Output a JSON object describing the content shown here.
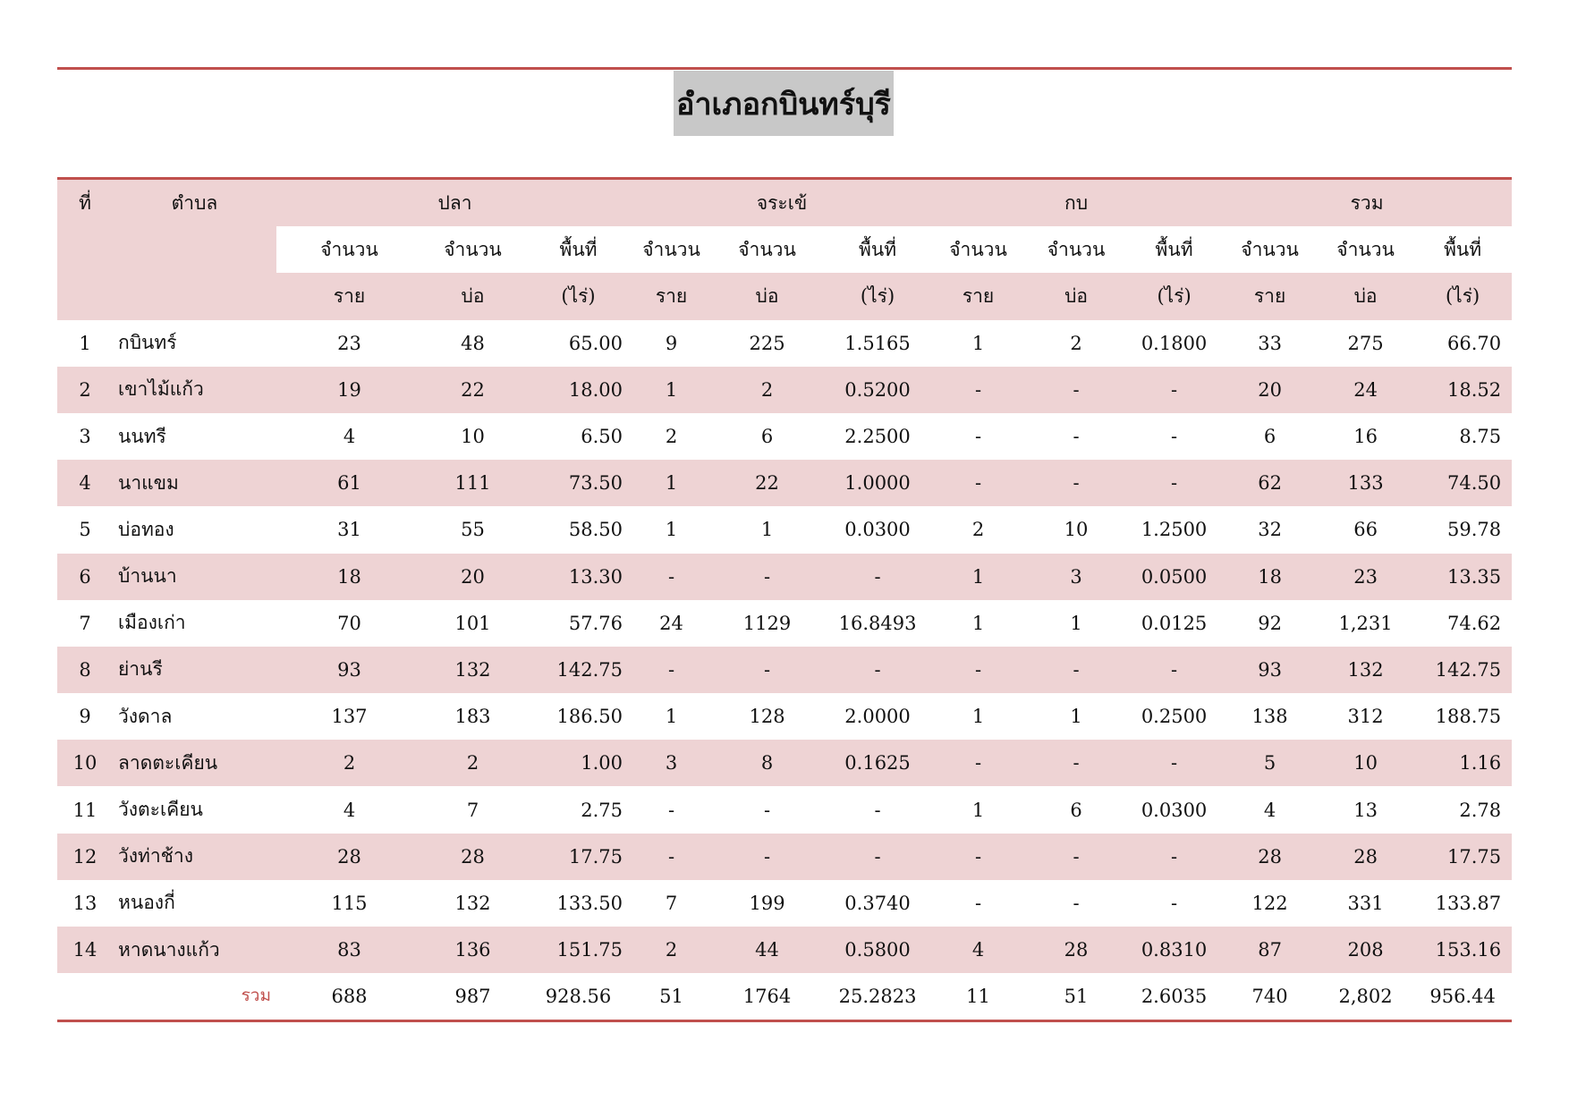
{
  "title": "อำเภอกบินทร์บุรี",
  "colors": {
    "rule": "#c0504d",
    "band": "#eed3d4",
    "title_bg": "#c8c8c8"
  },
  "header": {
    "no": "ที่",
    "tambon": "ตำบล",
    "groups": [
      "ปลา",
      "จระเข้",
      "กบ",
      "รวม"
    ],
    "sub1": [
      "จำนวน",
      "จำนวน",
      "พื้นที่"
    ],
    "sub2": [
      "ราย",
      "บ่อ",
      "(ไร่)"
    ]
  },
  "rows": [
    [
      "1",
      "กบินทร์",
      "23",
      "48",
      "65.00",
      "9",
      "225",
      "1.5165",
      "1",
      "2",
      "0.1800",
      "33",
      "275",
      "66.70"
    ],
    [
      "2",
      "เขาไม้แก้ว",
      "19",
      "22",
      "18.00",
      "1",
      "2",
      "0.5200",
      "-",
      "-",
      "-",
      "20",
      "24",
      "18.52"
    ],
    [
      "3",
      "นนทรี",
      "4",
      "10",
      "6.50",
      "2",
      "6",
      "2.2500",
      "-",
      "-",
      "-",
      "6",
      "16",
      "8.75"
    ],
    [
      "4",
      "นาแขม",
      "61",
      "111",
      "73.50",
      "1",
      "22",
      "1.0000",
      "-",
      "-",
      "-",
      "62",
      "133",
      "74.50"
    ],
    [
      "5",
      "บ่อทอง",
      "31",
      "55",
      "58.50",
      "1",
      "1",
      "0.0300",
      "2",
      "10",
      "1.2500",
      "32",
      "66",
      "59.78"
    ],
    [
      "6",
      "บ้านนา",
      "18",
      "20",
      "13.30",
      "-",
      "-",
      "-",
      "1",
      "3",
      "0.0500",
      "18",
      "23",
      "13.35"
    ],
    [
      "7",
      "เมืองเก่า",
      "70",
      "101",
      "57.76",
      "24",
      "1129",
      "16.8493",
      "1",
      "1",
      "0.0125",
      "92",
      "1,231",
      "74.62"
    ],
    [
      "8",
      "ย่านรี",
      "93",
      "132",
      "142.75",
      "-",
      "-",
      "-",
      "-",
      "-",
      "-",
      "93",
      "132",
      "142.75"
    ],
    [
      "9",
      "วังดาล",
      "137",
      "183",
      "186.50",
      "1",
      "128",
      "2.0000",
      "1",
      "1",
      "0.2500",
      "138",
      "312",
      "188.75"
    ],
    [
      "10",
      "ลาดตะเคียน",
      "2",
      "2",
      "1.00",
      "3",
      "8",
      "0.1625",
      "-",
      "-",
      "-",
      "5",
      "10",
      "1.16"
    ],
    [
      "11",
      "วังตะเคียน",
      "4",
      "7",
      "2.75",
      "-",
      "-",
      "-",
      "1",
      "6",
      "0.0300",
      "4",
      "13",
      "2.78"
    ],
    [
      "12",
      "วังท่าช้าง",
      "28",
      "28",
      "17.75",
      "-",
      "-",
      "-",
      "-",
      "-",
      "-",
      "28",
      "28",
      "17.75"
    ],
    [
      "13",
      "หนองกี่",
      "115",
      "132",
      "133.50",
      "7",
      "199",
      "0.3740",
      "-",
      "-",
      "-",
      "122",
      "331",
      "133.87"
    ],
    [
      "14",
      "หาดนางแก้ว",
      "83",
      "136",
      "151.75",
      "2",
      "44",
      "0.5800",
      "4",
      "28",
      "0.8310",
      "87",
      "208",
      "153.16"
    ]
  ],
  "total": {
    "label": "รวม",
    "values": [
      "688",
      "987",
      "928.56",
      "51",
      "1764",
      "25.2823",
      "11",
      "51",
      "2.6035",
      "740",
      "2,802",
      "956.44"
    ]
  }
}
